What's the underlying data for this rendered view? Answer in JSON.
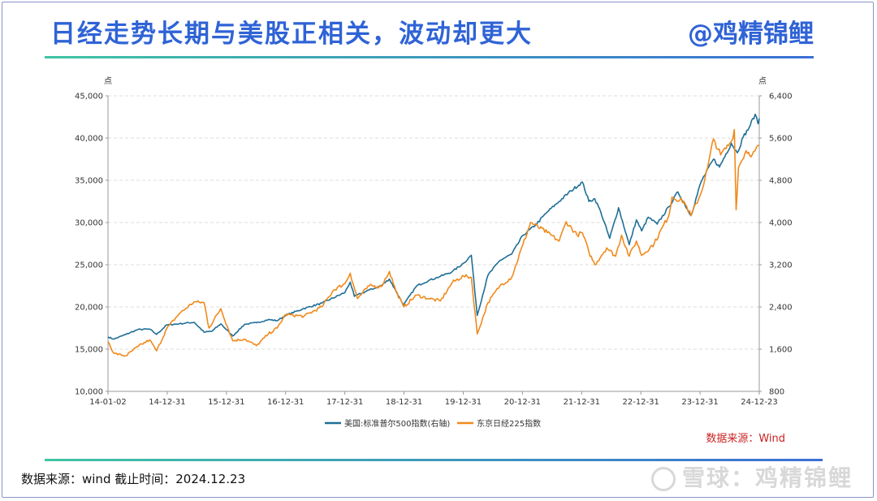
{
  "header": {
    "title": "日经走势长期与美股正相关，波动却更大",
    "handle": "@鸡精锦鲤"
  },
  "footer": {
    "note": "数据来源：wind  截止时间：2024.12.23",
    "watermark": "雪球：鸡精锦鲤"
  },
  "colors": {
    "title": "#2f63d6",
    "sp500": "#1f6f96",
    "nikkei": "#f08a1c",
    "source": "#cc2222"
  },
  "chart_data": {
    "type": "line",
    "left_unit": "点",
    "right_unit": "点",
    "source": "数据来源：Wind",
    "grid": true,
    "legend_position": "bottom",
    "x_ticks": [
      "14-01-02",
      "14-12-31",
      "15-12-31",
      "16-12-31",
      "17-12-31",
      "18-12-31",
      "19-12-31",
      "20-12-31",
      "21-12-31",
      "22-12-31",
      "23-12-31",
      "24-12-23"
    ],
    "x_range": [
      2014.0,
      2024.97
    ],
    "y_left": {
      "range": [
        10000,
        45000
      ],
      "ticks": [
        "10,000",
        "15,000",
        "20,000",
        "25,000",
        "30,000",
        "35,000",
        "40,000",
        "45,000"
      ]
    },
    "y_right": {
      "range": [
        800,
        6400
      ],
      "ticks": [
        "800",
        "1,600",
        "2,400",
        "3,200",
        "4,000",
        "4,800",
        "5,600",
        "6,400"
      ]
    },
    "series": [
      {
        "name": "美国:标准普尔500指数(右轴)",
        "axis": "right",
        "color": "#1f6f96",
        "points": [
          [
            2014.0,
            1832
          ],
          [
            2014.1,
            1790
          ],
          [
            2014.3,
            1880
          ],
          [
            2014.5,
            1970
          ],
          [
            2014.7,
            1980
          ],
          [
            2014.82,
            1880
          ],
          [
            2014.99,
            2060
          ],
          [
            2015.2,
            2080
          ],
          [
            2015.45,
            2110
          ],
          [
            2015.62,
            1920
          ],
          [
            2015.75,
            1940
          ],
          [
            2015.9,
            2080
          ],
          [
            2016.1,
            1850
          ],
          [
            2016.3,
            2070
          ],
          [
            2016.5,
            2100
          ],
          [
            2016.7,
            2160
          ],
          [
            2016.85,
            2140
          ],
          [
            2016.99,
            2240
          ],
          [
            2017.3,
            2370
          ],
          [
            2017.6,
            2470
          ],
          [
            2017.99,
            2673
          ],
          [
            2018.08,
            2870
          ],
          [
            2018.15,
            2600
          ],
          [
            2018.4,
            2720
          ],
          [
            2018.6,
            2800
          ],
          [
            2018.74,
            2930
          ],
          [
            2018.85,
            2700
          ],
          [
            2018.98,
            2440
          ],
          [
            2019.2,
            2800
          ],
          [
            2019.4,
            2900
          ],
          [
            2019.6,
            2980
          ],
          [
            2019.8,
            3070
          ],
          [
            2019.99,
            3230
          ],
          [
            2020.12,
            3380
          ],
          [
            2020.22,
            2240
          ],
          [
            2020.4,
            3000
          ],
          [
            2020.6,
            3280
          ],
          [
            2020.8,
            3400
          ],
          [
            2020.99,
            3756
          ],
          [
            2021.2,
            3950
          ],
          [
            2021.4,
            4200
          ],
          [
            2021.6,
            4400
          ],
          [
            2021.8,
            4600
          ],
          [
            2021.99,
            4766
          ],
          [
            2022.1,
            4400
          ],
          [
            2022.2,
            4450
          ],
          [
            2022.3,
            4200
          ],
          [
            2022.45,
            3700
          ],
          [
            2022.6,
            4280
          ],
          [
            2022.78,
            3580
          ],
          [
            2022.9,
            4050
          ],
          [
            2022.99,
            3840
          ],
          [
            2023.1,
            4100
          ],
          [
            2023.25,
            3970
          ],
          [
            2023.45,
            4300
          ],
          [
            2023.6,
            4580
          ],
          [
            2023.82,
            4130
          ],
          [
            2023.99,
            4770
          ],
          [
            2024.2,
            5200
          ],
          [
            2024.3,
            5050
          ],
          [
            2024.5,
            5500
          ],
          [
            2024.6,
            5320
          ],
          [
            2024.7,
            5620
          ],
          [
            2024.8,
            5800
          ],
          [
            2024.9,
            6050
          ],
          [
            2024.95,
            5870
          ],
          [
            2024.97,
            5974
          ]
        ]
      },
      {
        "name": "东京日经225指数",
        "axis": "left",
        "color": "#f08a1c",
        "points": [
          [
            2014.0,
            15900
          ],
          [
            2014.1,
            14500
          ],
          [
            2014.3,
            14200
          ],
          [
            2014.5,
            15300
          ],
          [
            2014.7,
            16100
          ],
          [
            2014.82,
            14800
          ],
          [
            2014.99,
            17450
          ],
          [
            2015.2,
            19200
          ],
          [
            2015.45,
            20600
          ],
          [
            2015.62,
            20500
          ],
          [
            2015.7,
            17500
          ],
          [
            2015.9,
            19800
          ],
          [
            2016.1,
            16000
          ],
          [
            2016.3,
            16200
          ],
          [
            2016.5,
            15400
          ],
          [
            2016.7,
            16800
          ],
          [
            2016.85,
            17500
          ],
          [
            2016.99,
            19100
          ],
          [
            2017.3,
            18900
          ],
          [
            2017.6,
            20000
          ],
          [
            2017.8,
            22000
          ],
          [
            2017.99,
            22760
          ],
          [
            2018.08,
            24000
          ],
          [
            2018.2,
            21000
          ],
          [
            2018.4,
            22500
          ],
          [
            2018.6,
            22400
          ],
          [
            2018.74,
            24200
          ],
          [
            2018.85,
            21900
          ],
          [
            2018.98,
            20000
          ],
          [
            2019.2,
            21400
          ],
          [
            2019.4,
            21000
          ],
          [
            2019.6,
            20700
          ],
          [
            2019.8,
            22900
          ],
          [
            2019.99,
            23660
          ],
          [
            2020.12,
            23500
          ],
          [
            2020.22,
            16800
          ],
          [
            2020.4,
            20500
          ],
          [
            2020.6,
            22500
          ],
          [
            2020.8,
            23500
          ],
          [
            2020.99,
            27400
          ],
          [
            2021.12,
            30000
          ],
          [
            2021.4,
            28800
          ],
          [
            2021.6,
            27800
          ],
          [
            2021.72,
            30100
          ],
          [
            2021.9,
            28500
          ],
          [
            2021.99,
            28800
          ],
          [
            2022.1,
            26500
          ],
          [
            2022.2,
            25000
          ],
          [
            2022.4,
            27000
          ],
          [
            2022.55,
            26000
          ],
          [
            2022.65,
            28500
          ],
          [
            2022.78,
            26000
          ],
          [
            2022.9,
            27800
          ],
          [
            2022.99,
            26100
          ],
          [
            2023.2,
            27500
          ],
          [
            2023.45,
            30900
          ],
          [
            2023.5,
            33000
          ],
          [
            2023.7,
            32500
          ],
          [
            2023.82,
            30800
          ],
          [
            2023.99,
            33500
          ],
          [
            2024.1,
            36500
          ],
          [
            2024.2,
            39900
          ],
          [
            2024.32,
            38000
          ],
          [
            2024.5,
            39600
          ],
          [
            2024.55,
            41000
          ],
          [
            2024.58,
            31500
          ],
          [
            2024.62,
            36500
          ],
          [
            2024.75,
            38500
          ],
          [
            2024.85,
            38000
          ],
          [
            2024.97,
            39100
          ]
        ]
      }
    ]
  }
}
